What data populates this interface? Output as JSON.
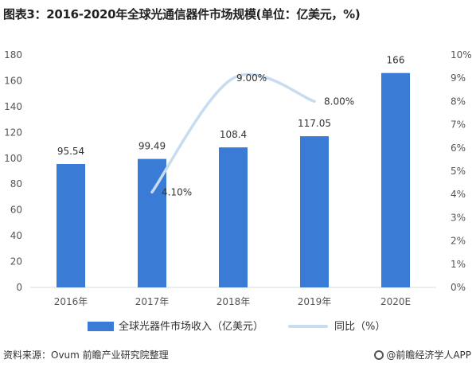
{
  "title": "图表3：2016-2020年全球光通信器件市场规模(单位：亿美元，%)",
  "colors": {
    "bar": "#3a7bd5",
    "line": "#c8dcf0",
    "axis_text": "#555555"
  },
  "chart_data": {
    "type": "bar",
    "categories": [
      "2016年",
      "2017年",
      "2018年",
      "2019年",
      "2020E"
    ],
    "series": [
      {
        "name": "全球光器件市场收入（亿美元）",
        "kind": "bar",
        "axis": "left",
        "values": [
          95.54,
          99.49,
          108.4,
          117.05,
          166
        ],
        "labels": [
          "95.54",
          "99.49",
          "108.4",
          "117.05",
          "166"
        ]
      },
      {
        "name": "同比（%）",
        "kind": "line",
        "axis": "right",
        "values": [
          null,
          4.1,
          9.0,
          8.0,
          null
        ],
        "labels": [
          "",
          "4.10%",
          "9.00%",
          "8.00%",
          ""
        ]
      }
    ],
    "left_axis": {
      "ylim": [
        0,
        180
      ],
      "ticks": [
        "0",
        "20",
        "40",
        "60",
        "80",
        "100",
        "120",
        "140",
        "160",
        "180"
      ]
    },
    "right_axis": {
      "ylim": [
        0,
        10
      ],
      "ticks": [
        "0%",
        "1%",
        "2%",
        "3%",
        "4%",
        "5%",
        "6%",
        "7%",
        "8%",
        "9%",
        "10%"
      ]
    },
    "grid": false,
    "legend_position": "bottom"
  },
  "legend": {
    "bar_label": "全球光器件市场收入（亿美元）",
    "line_label": "同比（%）"
  },
  "footer": {
    "source": "资料来源：Ovum 前瞻产业研究院整理",
    "brand": "@前瞻经济学人APP"
  }
}
